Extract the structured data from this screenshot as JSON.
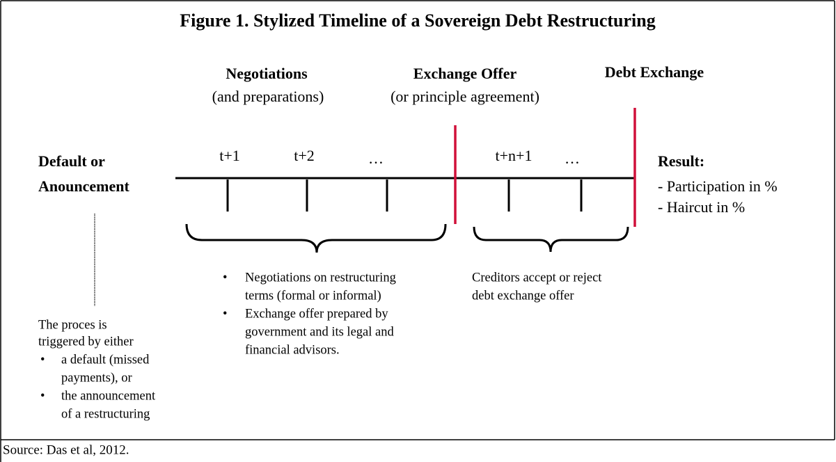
{
  "title": "Figure 1. Stylized Timeline of a Sovereign Debt Restructuring",
  "phases": [
    {
      "title": "Negotiations",
      "subtitle": "(and preparations)"
    },
    {
      "title": "Exchange Offer",
      "subtitle": "(or principle agreement)"
    },
    {
      "title": "Debt Exchange"
    }
  ],
  "start": {
    "lines": [
      "Default or",
      "Anouncement"
    ]
  },
  "ticks": [
    "t+1",
    "t+2",
    "…",
    "t+n+1",
    "…"
  ],
  "result": {
    "title": "Result:",
    "items": [
      "- Participation in %",
      "- Haircut in %"
    ]
  },
  "notes": {
    "trigger": {
      "intro": [
        "The proces is",
        "triggered by either"
      ],
      "bullets": [
        [
          "a default (missed",
          "payments), or"
        ],
        [
          "the announcement",
          "of a restructuring"
        ]
      ]
    },
    "negotiations": {
      "bullets": [
        [
          "Negotiations on restructuring",
          "terms (formal or informal)"
        ],
        [
          "Exchange offer prepared by",
          "government and its legal and",
          "financial advisors."
        ]
      ]
    },
    "exchange": {
      "lines": [
        "Creditors accept or reject",
        "debt exchange offer"
      ]
    }
  },
  "source": "Source: Das et al, 2012."
}
